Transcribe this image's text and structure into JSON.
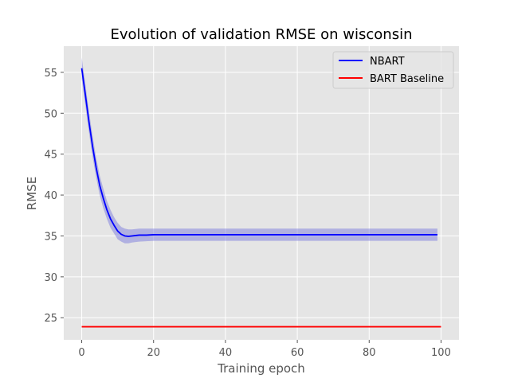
{
  "chart_data": {
    "type": "line",
    "title": "Evolution of validation RMSE on wisconsin",
    "xlabel": "Training epoch",
    "ylabel": "RMSE",
    "xlim": [
      -5,
      105
    ],
    "ylim": [
      22.3,
      58.2
    ],
    "xticks": [
      0,
      20,
      40,
      60,
      80,
      100
    ],
    "yticks": [
      25,
      30,
      35,
      40,
      45,
      50,
      55
    ],
    "grid": true,
    "legend_position": "top-right",
    "series": [
      {
        "name": "NBART",
        "color": "#0000ff",
        "band_color": "#7b7bdd",
        "x": [
          0,
          1,
          2,
          3,
          4,
          5,
          6,
          7,
          8,
          9,
          10,
          11,
          12,
          13,
          14,
          15,
          16,
          18,
          20,
          25,
          30,
          40,
          50,
          60,
          70,
          80,
          90,
          99
        ],
        "y": [
          55.5,
          52.3,
          49.0,
          46.0,
          43.4,
          41.2,
          39.6,
          38.2,
          37.1,
          36.3,
          35.6,
          35.2,
          35.0,
          34.95,
          35.0,
          35.05,
          35.1,
          35.1,
          35.15,
          35.15,
          35.15,
          35.15,
          35.15,
          35.15,
          35.15,
          35.15,
          35.15,
          35.15
        ],
        "band_upper": [
          56.8,
          53.6,
          50.3,
          47.3,
          44.6,
          42.4,
          40.8,
          39.3,
          38.2,
          37.3,
          36.6,
          36.1,
          35.9,
          35.8,
          35.8,
          35.85,
          35.9,
          35.9,
          35.9,
          35.9,
          35.9,
          35.9,
          35.9,
          35.9,
          35.9,
          35.9,
          35.9,
          35.9
        ],
        "band_lower": [
          54.2,
          51.0,
          47.7,
          44.7,
          42.2,
          40.0,
          38.4,
          37.1,
          36.0,
          35.3,
          34.6,
          34.3,
          34.1,
          34.1,
          34.2,
          34.25,
          34.3,
          34.35,
          34.4,
          34.4,
          34.4,
          34.4,
          34.4,
          34.4,
          34.4,
          34.4,
          34.4,
          34.4
        ]
      },
      {
        "name": "BART Baseline",
        "color": "#ff0000",
        "x": [
          0,
          100
        ],
        "y": [
          23.9,
          23.9
        ]
      }
    ]
  }
}
